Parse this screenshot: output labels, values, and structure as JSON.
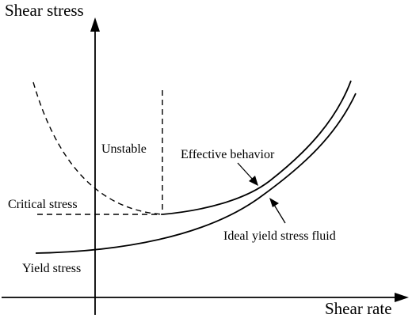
{
  "diagram": {
    "y_axis_label": "Shear stress",
    "x_axis_label": "Shear rate",
    "annotations": {
      "unstable": "Unstable",
      "effective_behavior": "Effective behavior",
      "critical_stress": "Critical stress",
      "ideal_yield_stress_fluid": "Ideal yield stress fluid",
      "yield_stress": "Yield stress"
    },
    "colors": {
      "ink": "#000000",
      "background": "#ffffff"
    }
  }
}
